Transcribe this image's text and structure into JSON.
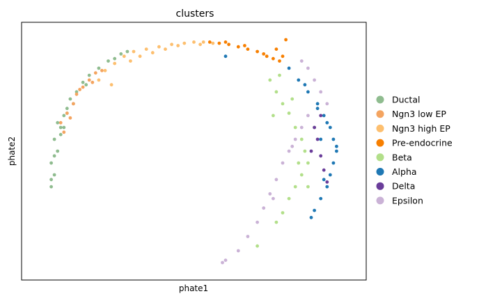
{
  "chart_data": {
    "type": "scatter",
    "title": "clusters",
    "xlabel": "phate1",
    "ylabel": "phate2",
    "grid": false,
    "ticks": false,
    "legend_position": "right-outside",
    "series": [
      {
        "name": "Ductal",
        "color": "#8fbc8f",
        "points": [
          [
            0.05,
            0.35
          ],
          [
            0.06,
            0.4
          ],
          [
            0.05,
            0.45
          ],
          [
            0.07,
            0.5
          ],
          [
            0.06,
            0.55
          ],
          [
            0.08,
            0.6
          ],
          [
            0.09,
            0.65
          ],
          [
            0.1,
            0.68
          ],
          [
            0.11,
            0.72
          ],
          [
            0.13,
            0.75
          ],
          [
            0.15,
            0.79
          ],
          [
            0.17,
            0.82
          ],
          [
            0.2,
            0.85
          ],
          [
            0.23,
            0.88
          ],
          [
            0.25,
            0.89
          ],
          [
            0.27,
            0.91
          ],
          [
            0.29,
            0.92
          ],
          [
            0.07,
            0.62
          ],
          [
            0.06,
            0.48
          ],
          [
            0.05,
            0.38
          ],
          [
            0.08,
            0.57
          ],
          [
            0.12,
            0.7
          ],
          [
            0.16,
            0.78
          ],
          [
            0.1,
            0.66
          ],
          [
            0.09,
            0.6
          ]
        ]
      },
      {
        "name": "Ngn3 low EP",
        "color": "#f4a460",
        "points": [
          [
            0.08,
            0.62
          ],
          [
            0.1,
            0.66
          ],
          [
            0.12,
            0.7
          ],
          [
            0.13,
            0.74
          ],
          [
            0.15,
            0.77
          ],
          [
            0.17,
            0.8
          ],
          [
            0.19,
            0.83
          ],
          [
            0.21,
            0.84
          ],
          [
            0.11,
            0.64
          ],
          [
            0.09,
            0.58
          ],
          [
            0.14,
            0.76
          ],
          [
            0.18,
            0.79
          ]
        ]
      },
      {
        "name": "Ngn3 high EP",
        "color": "#fdbf6f",
        "points": [
          [
            0.2,
            0.8
          ],
          [
            0.22,
            0.84
          ],
          [
            0.25,
            0.87
          ],
          [
            0.28,
            0.9
          ],
          [
            0.31,
            0.92
          ],
          [
            0.35,
            0.93
          ],
          [
            0.39,
            0.94
          ],
          [
            0.43,
            0.95
          ],
          [
            0.47,
            0.955
          ],
          [
            0.5,
            0.96
          ],
          [
            0.53,
            0.96
          ],
          [
            0.56,
            0.955
          ],
          [
            0.24,
            0.78
          ],
          [
            0.3,
            0.88
          ],
          [
            0.37,
            0.915
          ],
          [
            0.45,
            0.945
          ],
          [
            0.52,
            0.95
          ],
          [
            0.33,
            0.9
          ],
          [
            0.41,
            0.93
          ]
        ]
      },
      {
        "name": "Pre-endocrine",
        "color": "#f77f00",
        "points": [
          [
            0.55,
            0.96
          ],
          [
            0.58,
            0.955
          ],
          [
            0.61,
            0.95
          ],
          [
            0.64,
            0.94
          ],
          [
            0.67,
            0.93
          ],
          [
            0.7,
            0.92
          ],
          [
            0.73,
            0.9
          ],
          [
            0.75,
            0.89
          ],
          [
            0.77,
            0.88
          ],
          [
            0.78,
            0.9
          ],
          [
            0.76,
            0.93
          ],
          [
            0.6,
            0.96
          ],
          [
            0.66,
            0.945
          ],
          [
            0.72,
            0.91
          ],
          [
            0.79,
            0.97
          ]
        ]
      },
      {
        "name": "Beta",
        "color": "#b2df8a",
        "points": [
          [
            0.74,
            0.8
          ],
          [
            0.76,
            0.75
          ],
          [
            0.78,
            0.7
          ],
          [
            0.8,
            0.66
          ],
          [
            0.82,
            0.6
          ],
          [
            0.84,
            0.55
          ],
          [
            0.85,
            0.5
          ],
          [
            0.86,
            0.45
          ],
          [
            0.84,
            0.4
          ],
          [
            0.82,
            0.35
          ],
          [
            0.8,
            0.3
          ],
          [
            0.78,
            0.24
          ],
          [
            0.76,
            0.2
          ],
          [
            0.7,
            0.1
          ],
          [
            0.75,
            0.65
          ],
          [
            0.81,
            0.72
          ],
          [
            0.83,
            0.45
          ],
          [
            0.88,
            0.6
          ],
          [
            0.77,
            0.82
          ],
          [
            0.86,
            0.35
          ]
        ]
      },
      {
        "name": "Alpha",
        "color": "#1f78b4",
        "points": [
          [
            0.8,
            0.85
          ],
          [
            0.83,
            0.8
          ],
          [
            0.86,
            0.75
          ],
          [
            0.89,
            0.7
          ],
          [
            0.91,
            0.65
          ],
          [
            0.93,
            0.6
          ],
          [
            0.94,
            0.55
          ],
          [
            0.95,
            0.5
          ],
          [
            0.94,
            0.45
          ],
          [
            0.93,
            0.4
          ],
          [
            0.92,
            0.35
          ],
          [
            0.9,
            0.3
          ],
          [
            0.88,
            0.25
          ],
          [
            0.87,
            0.22
          ],
          [
            0.9,
            0.55
          ],
          [
            0.92,
            0.62
          ],
          [
            0.95,
            0.52
          ],
          [
            0.85,
            0.78
          ],
          [
            0.89,
            0.68
          ],
          [
            0.91,
            0.38
          ],
          [
            0.6,
            0.9
          ]
        ]
      },
      {
        "name": "Delta",
        "color": "#6a3d9a",
        "points": [
          [
            0.88,
            0.6
          ],
          [
            0.89,
            0.55
          ],
          [
            0.9,
            0.48
          ],
          [
            0.91,
            0.42
          ],
          [
            0.92,
            0.37
          ],
          [
            0.87,
            0.5
          ],
          [
            0.9,
            0.65
          ]
        ]
      },
      {
        "name": "Epsilon",
        "color": "#cab2d6",
        "points": [
          [
            0.84,
            0.88
          ],
          [
            0.86,
            0.85
          ],
          [
            0.88,
            0.8
          ],
          [
            0.9,
            0.75
          ],
          [
            0.92,
            0.7
          ],
          [
            0.86,
            0.65
          ],
          [
            0.84,
            0.6
          ],
          [
            0.82,
            0.55
          ],
          [
            0.8,
            0.5
          ],
          [
            0.78,
            0.45
          ],
          [
            0.76,
            0.38
          ],
          [
            0.74,
            0.32
          ],
          [
            0.72,
            0.26
          ],
          [
            0.7,
            0.2
          ],
          [
            0.67,
            0.14
          ],
          [
            0.64,
            0.08
          ],
          [
            0.6,
            0.04
          ],
          [
            0.59,
            0.03
          ],
          [
            0.75,
            0.3
          ],
          [
            0.81,
            0.52
          ]
        ]
      }
    ]
  }
}
